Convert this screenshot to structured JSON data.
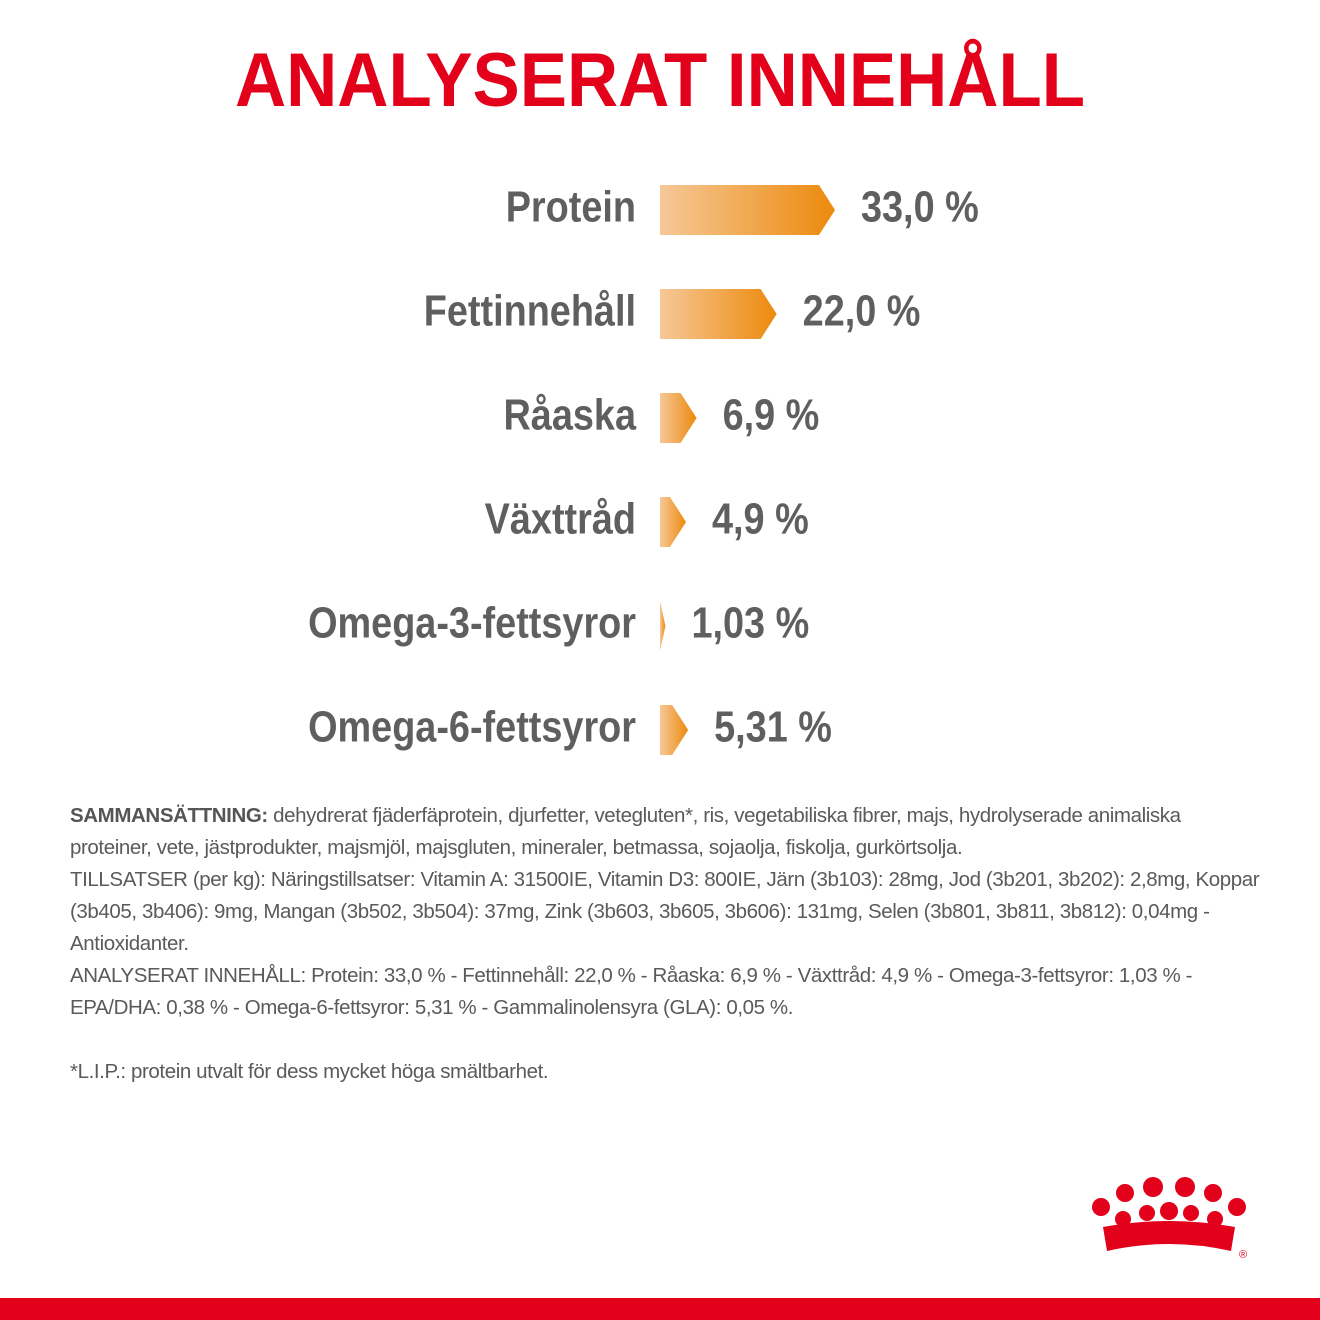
{
  "chart_data": {
    "type": "hbar",
    "title": "ANALYSERAT INNEHÅLL",
    "categories": [
      "Protein",
      "Fettinnehåll",
      "Råaska",
      "Växttråd",
      "Omega-3-fettsyror",
      "Omega-6-fettsyror"
    ],
    "values": [
      33.0,
      22.0,
      6.9,
      4.9,
      1.03,
      5.31
    ],
    "value_labels": [
      "33,0 %",
      "22,0 %",
      "6,9 %",
      "4,9 %",
      "1,03 %",
      "5,31 %"
    ],
    "color": "#ec8a0c"
  },
  "composition": {
    "heading": "SAMMANSÄTTNING:",
    "ingredients": "dehydrerat fjäderfäprotein, djurfetter, vetegluten*, ris, vegetabiliska fibrer, majs, hydrolyserade animaliska proteiner, vete, jästprodukter, majsmjöl, majsgluten, mineraler, betmassa, sojaolja, fiskolja, gurkörtsolja.",
    "additives": "TILLSATSER (per kg): Näringstillsatser: Vitamin A: 31500IE, Vitamin D3: 800IE, Järn (3b103): 28mg, Jod (3b201, 3b202): 2,8mg, Koppar (3b405, 3b406): 9mg, Mangan (3b502, 3b504): 37mg, Zink (3b603, 3b605, 3b606): 131mg, Selen (3b801, 3b811, 3b812): 0,04mg - Antioxidanter.",
    "analysis": "ANALYSERAT INNEHÅLL: Protein: 33,0 % - Fettinnehåll: 22,0 % - Råaska: 6,9 % - Växttråd: 4,9 % - Omega-3-fettsyror: 1,03 % - EPA/DHA: 0,38 % - Omega-6-fettsyror: 5,31 % - Gammalinolensyra (GLA): 0,05 %.",
    "footnote": "*L.I.P.: protein utvalt för dess mycket höga smältbarhet."
  },
  "logo": {
    "registered": "®"
  }
}
